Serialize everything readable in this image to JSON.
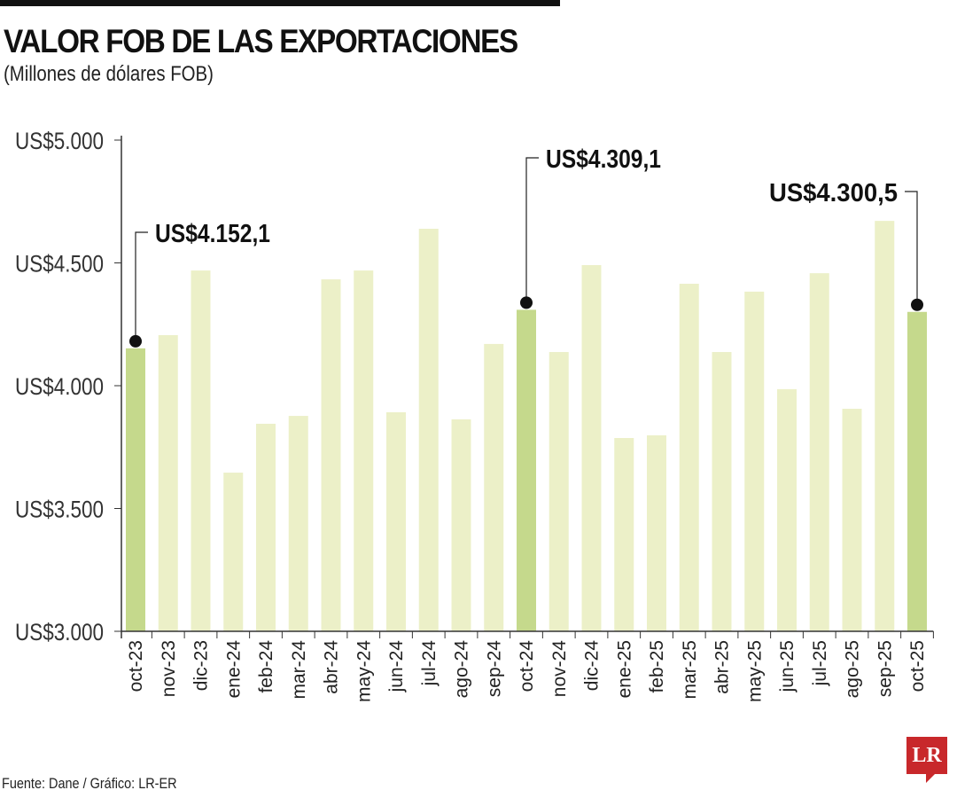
{
  "header": {
    "title": "VALOR FOB DE LAS EXPORTACIONES",
    "subtitle": "(Millones de dólares FOB)"
  },
  "footer": {
    "source": "Fuente: Dane / Gráfico: LR-ER",
    "logo": "LR"
  },
  "colors": {
    "bar": "#ecf0c8",
    "highlight": "#c5d98c",
    "logo": "#c8282b"
  },
  "chart_data": {
    "type": "bar",
    "title": "VALOR FOB DE LAS EXPORTACIONES",
    "ylim": [
      3000,
      5000
    ],
    "yticks": [
      3000,
      3500,
      4000,
      4500,
      5000
    ],
    "ytick_labels": [
      "US$3.000",
      "US$3.500",
      "US$4.000",
      "US$4.500",
      "US$5.000"
    ],
    "categories": [
      "oct-23",
      "nov-23",
      "dic-23",
      "ene-24",
      "feb-24",
      "mar-24",
      "abr-24",
      "may-24",
      "jun-24",
      "jul-24",
      "ago-24",
      "sep-24",
      "oct-24",
      "nov-24",
      "dic-24",
      "ene-25",
      "feb-25",
      "mar-25",
      "abr-25",
      "may-25",
      "jun-25",
      "jul-25",
      "ago-25",
      "sep-25",
      "oct-25"
    ],
    "values": [
      4152.1,
      4206,
      4469,
      3646,
      3845,
      3877,
      4433,
      4469,
      3892,
      4639,
      3863,
      4170,
      4309.1,
      4137,
      4491,
      3787,
      3798,
      4415,
      4137,
      4383,
      3986,
      4458,
      3906,
      4671,
      4300.5
    ],
    "highlighted": [
      0,
      12,
      24
    ],
    "annotations": [
      {
        "index": 0,
        "label": "US$4.152,1"
      },
      {
        "index": 12,
        "label": "US$4.309,1"
      },
      {
        "index": 24,
        "label": "US$4.300,5"
      }
    ],
    "grid": false
  }
}
